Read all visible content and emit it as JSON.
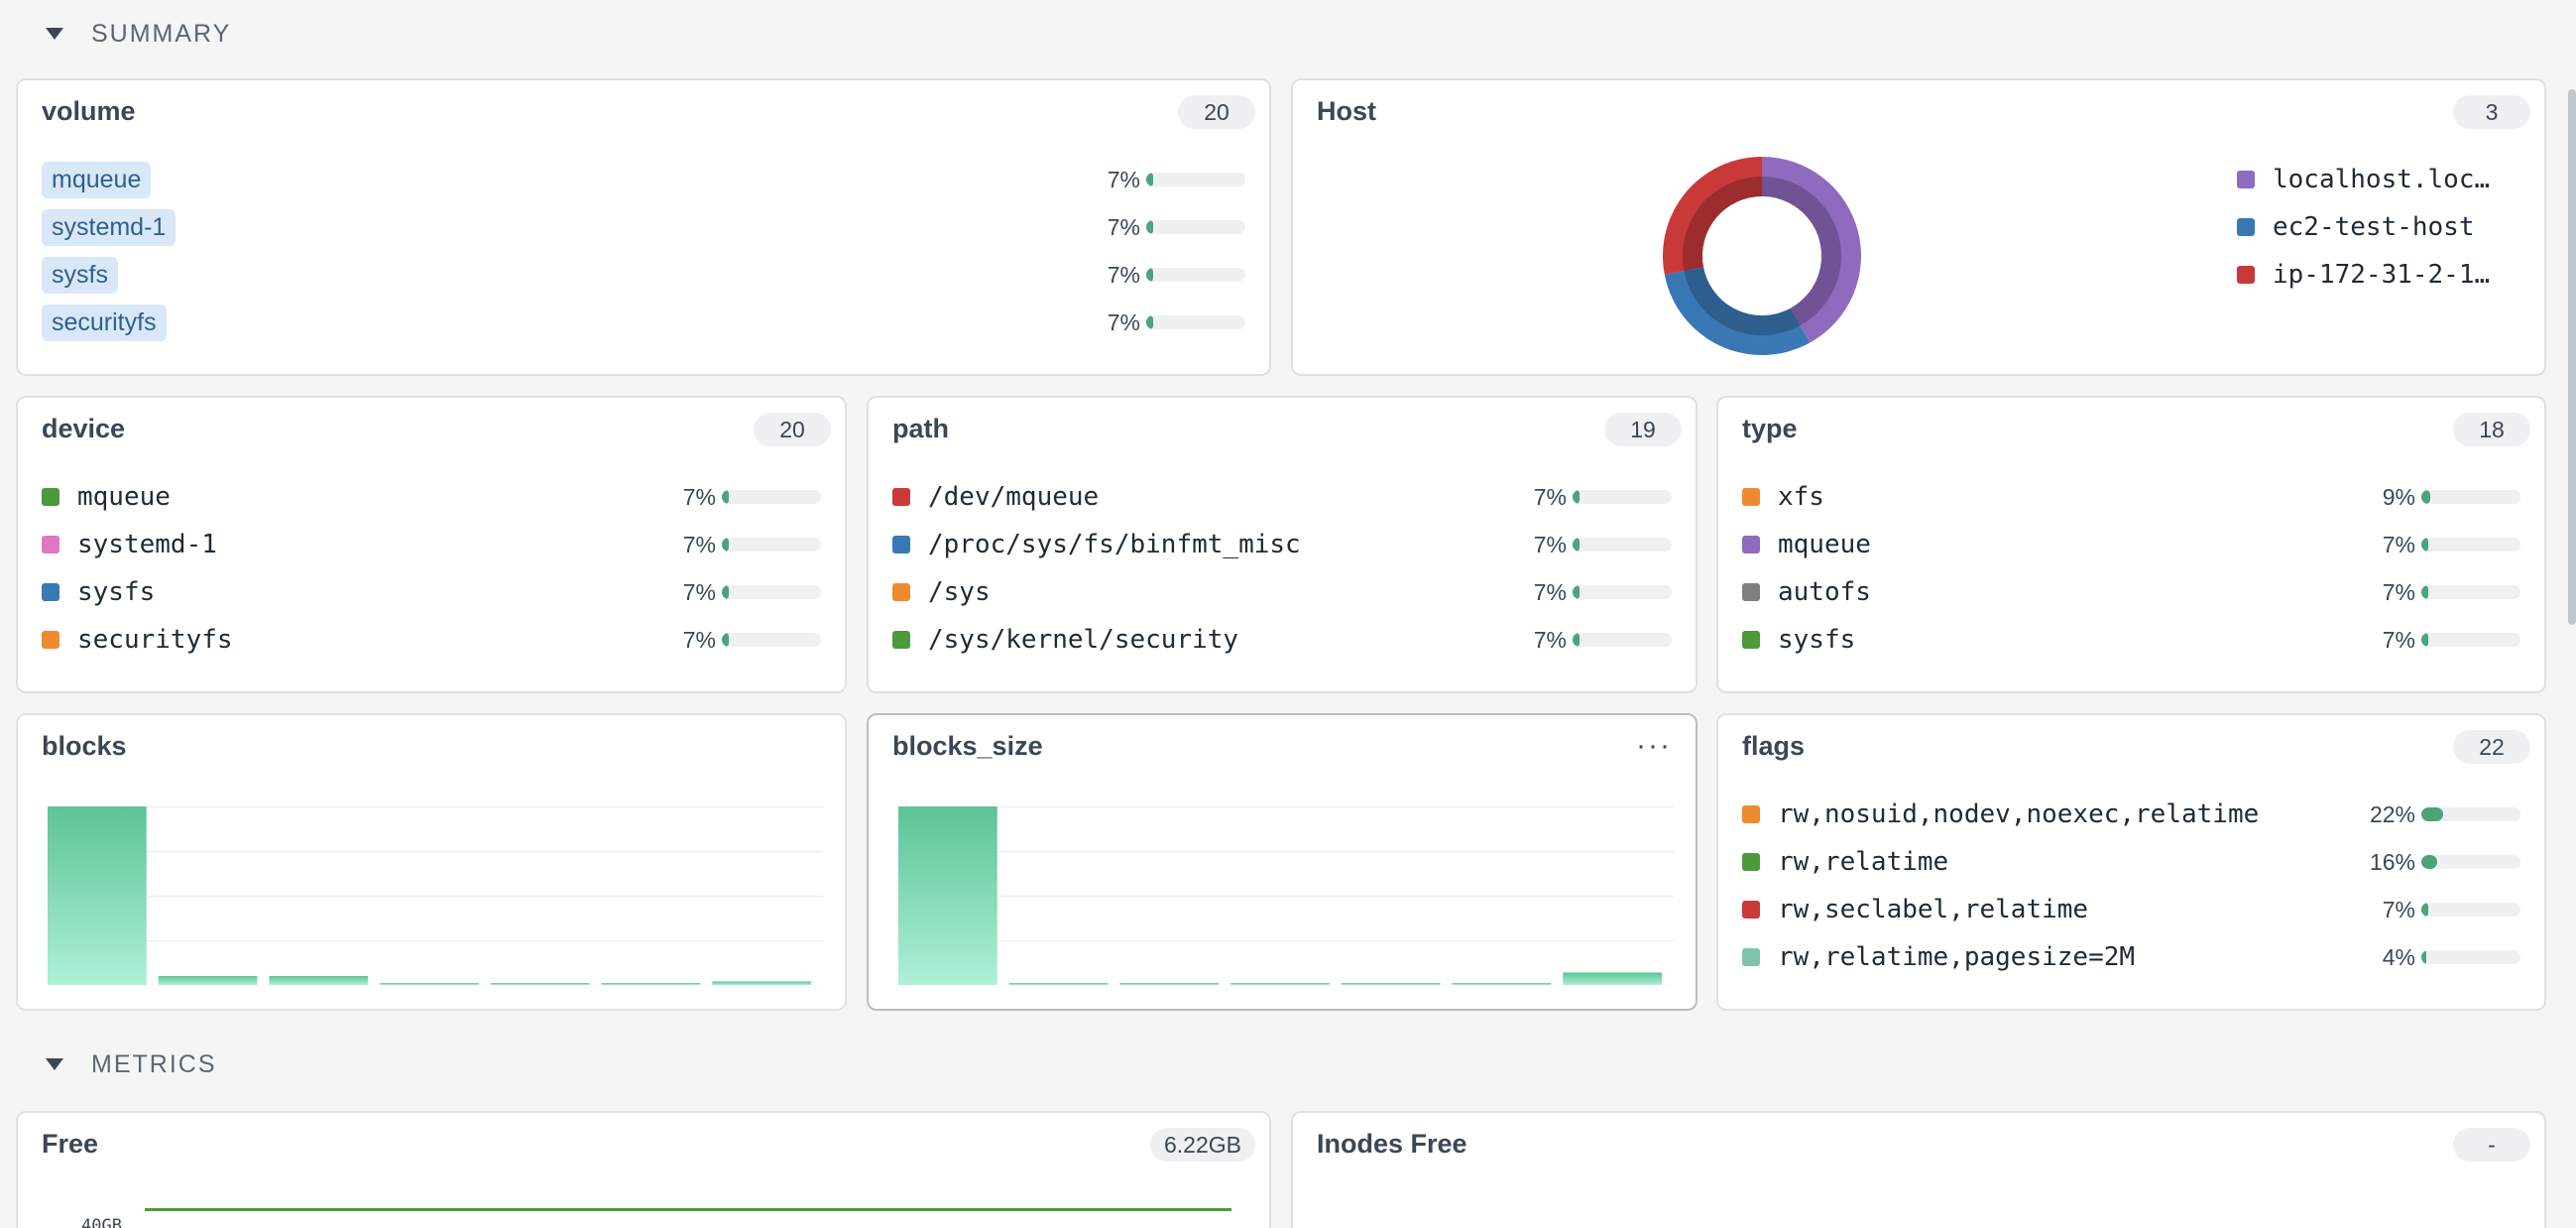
{
  "summary_section": {
    "title": "SUMMARY"
  },
  "metrics_section": {
    "title": "METRICS"
  },
  "volume": {
    "title": "volume",
    "count": "20",
    "rows": [
      {
        "label": "mqueue",
        "pct": "7%",
        "fraction": 0.07
      },
      {
        "label": "systemd-1",
        "pct": "7%",
        "fraction": 0.07
      },
      {
        "label": "sysfs",
        "pct": "7%",
        "fraction": 0.07
      },
      {
        "label": "securityfs",
        "pct": "7%",
        "fraction": 0.07
      }
    ]
  },
  "host": {
    "title": "Host",
    "count": "3",
    "legend": [
      {
        "label": "localhost.loc…",
        "color": "#8e6bbf",
        "value": 0.42
      },
      {
        "label": "ec2-test-host",
        "color": "#3a78b5",
        "value": 0.3
      },
      {
        "label": "ip-172-31-2-1…",
        "color": "#c9393a",
        "value": 0.28
      }
    ]
  },
  "device": {
    "title": "device",
    "count": "20",
    "rows": [
      {
        "label": "mqueue",
        "color": "#4d9a3c",
        "pct": "7%",
        "fraction": 0.07
      },
      {
        "label": "systemd-1",
        "color": "#de78c2",
        "pct": "7%",
        "fraction": 0.07
      },
      {
        "label": "sysfs",
        "color": "#3a78b5",
        "pct": "7%",
        "fraction": 0.07
      },
      {
        "label": "securityfs",
        "color": "#f08a30",
        "pct": "7%",
        "fraction": 0.07
      }
    ]
  },
  "path": {
    "title": "path",
    "count": "19",
    "rows": [
      {
        "label": "/dev/mqueue",
        "color": "#c9393a",
        "pct": "7%",
        "fraction": 0.07
      },
      {
        "label": "/proc/sys/fs/binfmt_misc",
        "color": "#3a78b5",
        "pct": "7%",
        "fraction": 0.07
      },
      {
        "label": "/sys",
        "color": "#f08a30",
        "pct": "7%",
        "fraction": 0.07
      },
      {
        "label": "/sys/kernel/security",
        "color": "#4d9a3c",
        "pct": "7%",
        "fraction": 0.07
      }
    ]
  },
  "type": {
    "title": "type",
    "count": "18",
    "rows": [
      {
        "label": "xfs",
        "color": "#f08a30",
        "pct": "9%",
        "fraction": 0.09
      },
      {
        "label": "mqueue",
        "color": "#8e6bbf",
        "pct": "7%",
        "fraction": 0.07
      },
      {
        "label": "autofs",
        "color": "#7f7f7f",
        "pct": "7%",
        "fraction": 0.07
      },
      {
        "label": "sysfs",
        "color": "#4d9a3c",
        "pct": "7%",
        "fraction": 0.07
      }
    ]
  },
  "blocks": {
    "title": "blocks",
    "chart_data": {
      "type": "bar",
      "values": [
        100,
        5,
        5,
        1,
        1,
        1,
        2
      ]
    }
  },
  "blocks_size": {
    "title": "blocks_size",
    "more_label": "···",
    "chart_data": {
      "type": "bar",
      "values": [
        100,
        1,
        1,
        1,
        1,
        1,
        7
      ]
    }
  },
  "flags": {
    "title": "flags",
    "count": "22",
    "rows": [
      {
        "label": "rw,nosuid,nodev,noexec,relatime",
        "color": "#f08a30",
        "pct": "22%",
        "fraction": 0.22
      },
      {
        "label": "rw,relatime",
        "color": "#4d9a3c",
        "pct": "16%",
        "fraction": 0.16
      },
      {
        "label": "rw,seclabel,relatime",
        "color": "#c9393a",
        "pct": "7%",
        "fraction": 0.07
      },
      {
        "label": "rw,relatime,pagesize=2M",
        "color": "#7fc4a8",
        "pct": "4%",
        "fraction": 0.04
      }
    ]
  },
  "free": {
    "title": "Free",
    "value": "6.22GB",
    "ytick": "40GB"
  },
  "inodes_free": {
    "title": "Inodes Free",
    "value": "-"
  }
}
